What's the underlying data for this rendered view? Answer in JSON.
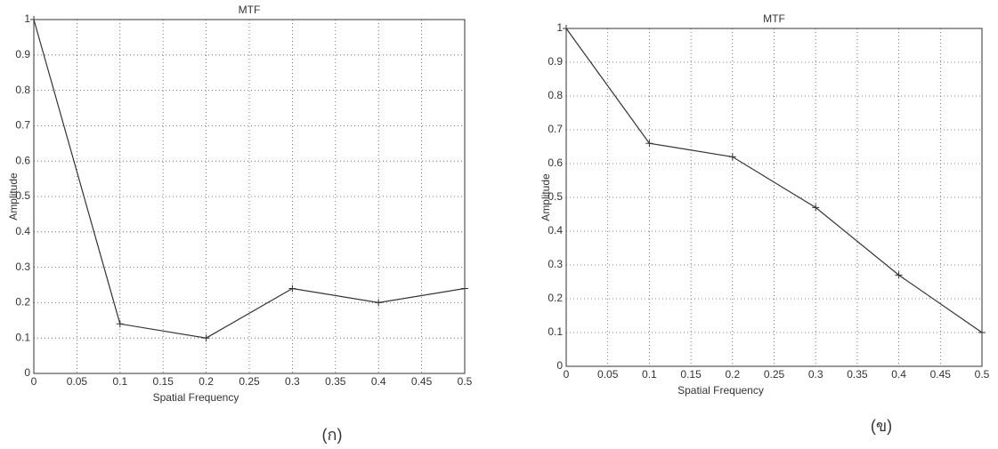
{
  "chart_data": [
    {
      "type": "line",
      "title": "MTF",
      "xlabel": "Spatial Frequency",
      "ylabel": "Amplitude",
      "caption": "(ก)",
      "x": [
        0,
        0.1,
        0.2,
        0.3,
        0.4,
        0.5
      ],
      "series": [
        {
          "color": "#333333",
          "values": [
            1,
            0.14,
            0.1,
            0.24,
            0.2,
            0.24
          ]
        }
      ],
      "xlim": [
        0,
        0.5
      ],
      "xticks": [
        0,
        0.05,
        0.1,
        0.15,
        0.2,
        0.25,
        0.3,
        0.35,
        0.4,
        0.45,
        0.5
      ],
      "ylim": [
        0,
        1
      ],
      "yticks": [
        0,
        0.1,
        0.2,
        0.3,
        0.4,
        0.5,
        0.6,
        0.7,
        0.8,
        0.9,
        1
      ],
      "grid": true
    },
    {
      "type": "line",
      "title": "MTF",
      "xlabel": "Spatial Frequency",
      "ylabel": "Amplitude",
      "caption": "(ข)",
      "x": [
        0,
        0.1,
        0.2,
        0.3,
        0.4,
        0.5
      ],
      "series": [
        {
          "color": "#333333",
          "values": [
            1,
            0.66,
            0.62,
            0.47,
            0.27,
            0.1
          ]
        }
      ],
      "xlim": [
        0,
        0.5
      ],
      "xticks": [
        0,
        0.05,
        0.1,
        0.15,
        0.2,
        0.25,
        0.3,
        0.35,
        0.4,
        0.45,
        0.5
      ],
      "ylim": [
        0,
        1
      ],
      "yticks": [
        0,
        0.1,
        0.2,
        0.3,
        0.4,
        0.5,
        0.6,
        0.7,
        0.8,
        0.9,
        1
      ],
      "grid": true
    }
  ]
}
